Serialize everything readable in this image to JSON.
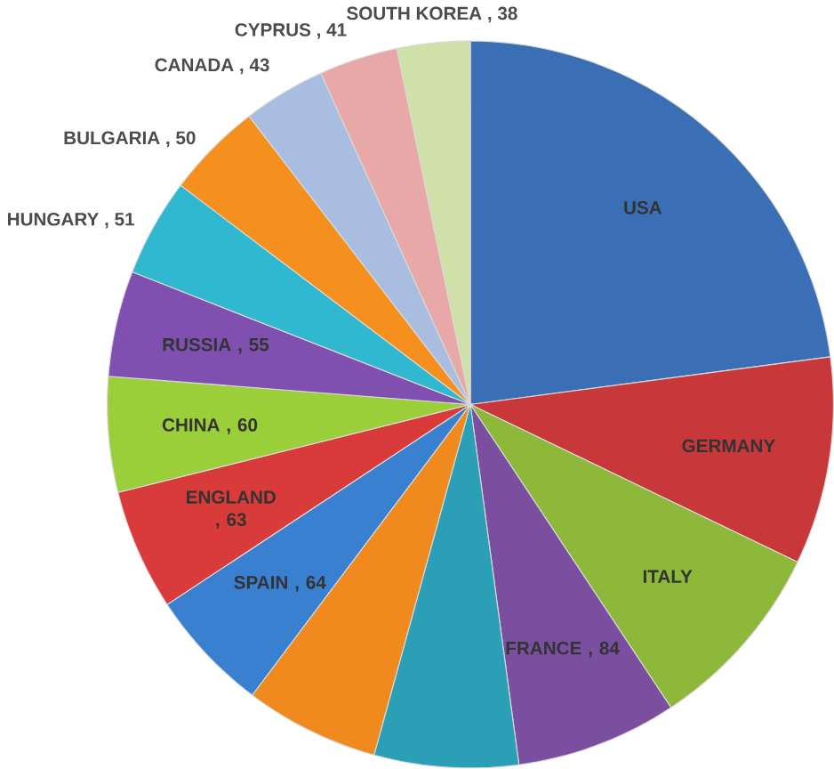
{
  "chart_data": {
    "type": "pie",
    "categories": [
      "USA",
      "GERMANY",
      "ITALY",
      "FRANCE",
      null,
      null,
      "SPAIN",
      "ENGLAND",
      "CHINA",
      "RUSSIA",
      "HUNGARY",
      "BULGARIA",
      "CANADA",
      "CYPRUS",
      "SOUTH KOREA"
    ],
    "values": [
      268,
      108,
      100,
      84,
      75,
      70,
      64,
      63,
      60,
      55,
      51,
      50,
      43,
      41,
      38
    ],
    "value_labels": [
      null,
      null,
      null,
      ", 84",
      null,
      null,
      ", 64",
      ", 63",
      ", 60",
      ", 55",
      ", 51",
      ", 50",
      ", 43",
      ", 41",
      ", 38"
    ],
    "colors": [
      "#3a6eb5",
      "#c8383a",
      "#8db83a",
      "#7a4fa0",
      "#2a9fb5",
      "#f08a1e",
      "#3a80d0",
      "#d93a3a",
      "#9bcf3a",
      "#8050b0",
      "#2fb8d0",
      "#f5901e",
      "#a8bde0",
      "#e8a8a8",
      "#cfe0a8"
    ]
  }
}
